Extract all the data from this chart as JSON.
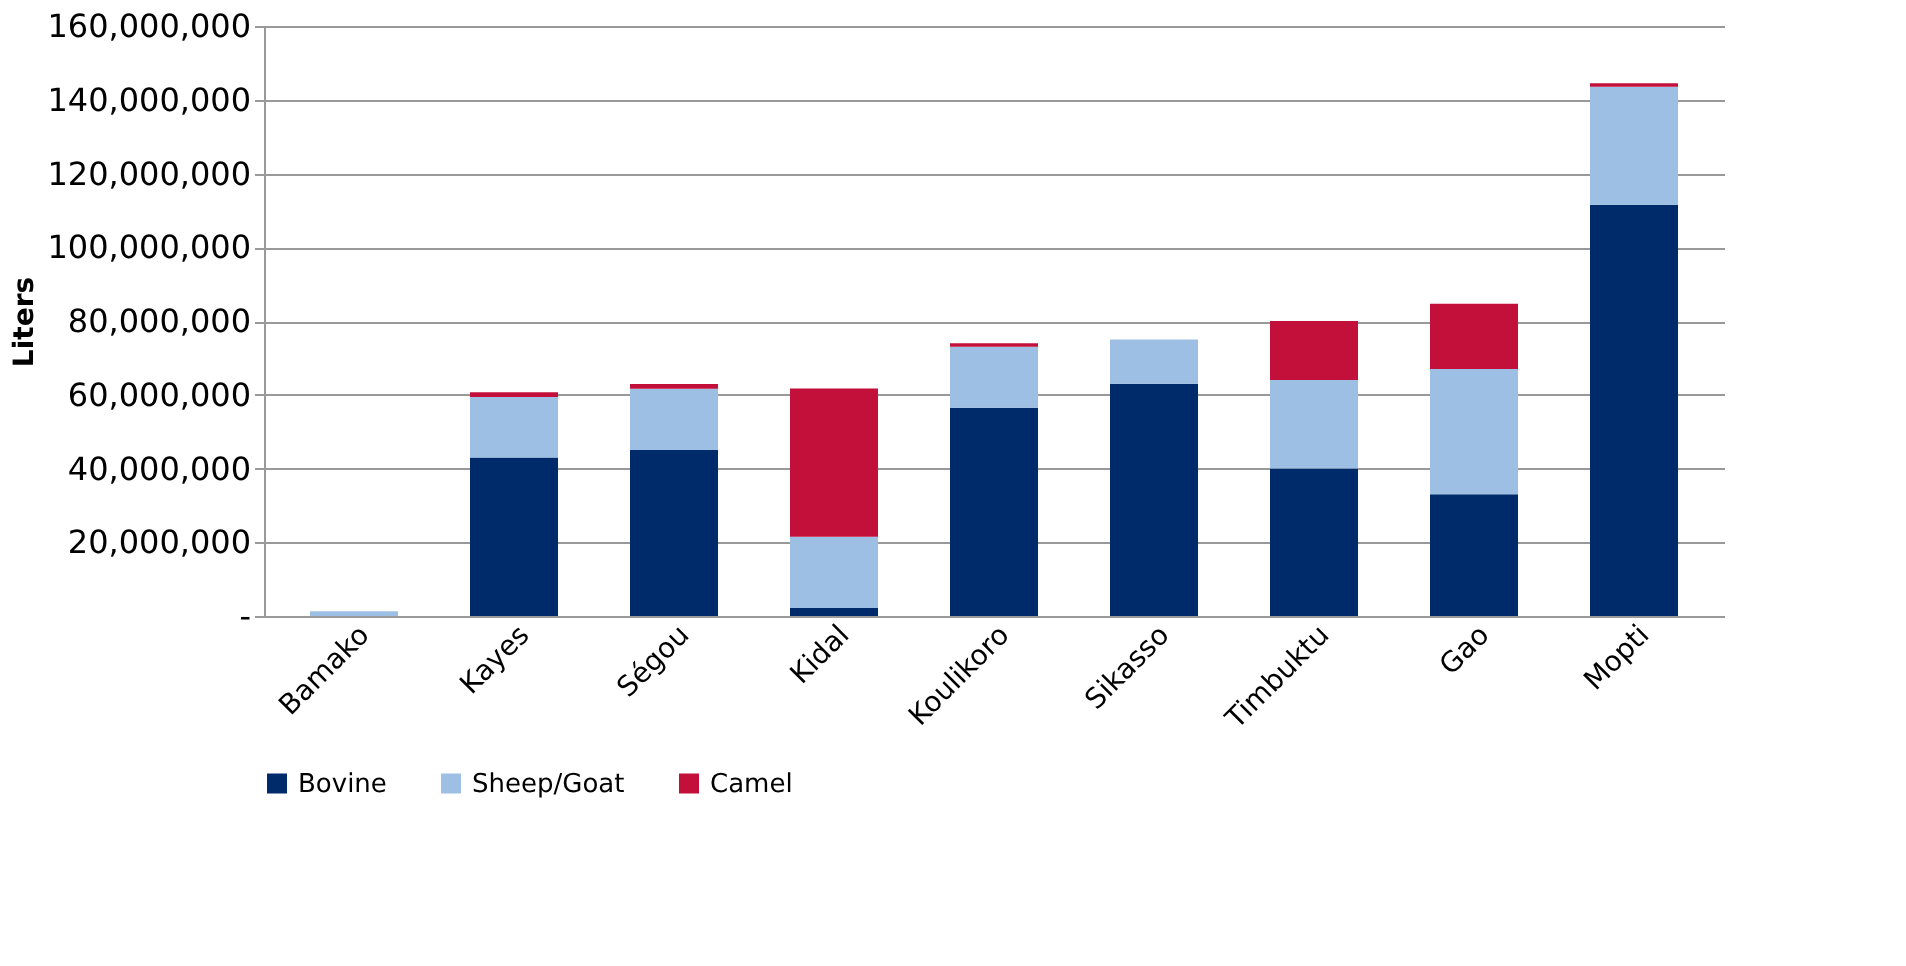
{
  "chart_data": {
    "type": "bar",
    "stacked": true,
    "ylabel": "Liters",
    "categories": [
      "Bamako",
      "Kayes",
      "Ségou",
      "Kidal",
      "Koulikoro",
      "Sikasso",
      "Timbuktu",
      "Gao",
      "Mopti"
    ],
    "series": [
      {
        "name": "Bovine",
        "color": "#002b6b",
        "values": [
          0,
          43000000,
          45000000,
          2200000,
          56500000,
          63000000,
          40000000,
          33000000,
          111500000
        ]
      },
      {
        "name": "Sheep/Goat",
        "color": "#9dbfe4",
        "values": [
          1300000,
          16400000,
          16600000,
          19300000,
          16500000,
          12000000,
          24000000,
          34000000,
          32000000
        ]
      },
      {
        "name": "Camel",
        "color": "#c3103a",
        "values": [
          0,
          1300000,
          1300000,
          40200000,
          1000000,
          0,
          16000000,
          17700000,
          1000000
        ]
      }
    ],
    "ylim": [
      0,
      160000000
    ],
    "yticks": [
      {
        "value": 0,
        "label": "-"
      },
      {
        "value": 20000000,
        "label": "20,000,000"
      },
      {
        "value": 40000000,
        "label": "40,000,000"
      },
      {
        "value": 60000000,
        "label": "60,000,000"
      },
      {
        "value": 80000000,
        "label": "80,000,000"
      },
      {
        "value": 100000000,
        "label": "100,000,000"
      },
      {
        "value": 120000000,
        "label": "120,000,000"
      },
      {
        "value": 140000000,
        "label": "140,000,000"
      },
      {
        "value": 160000000,
        "label": "160,000,000"
      }
    ],
    "grid": "y",
    "legend": "bottom"
  }
}
